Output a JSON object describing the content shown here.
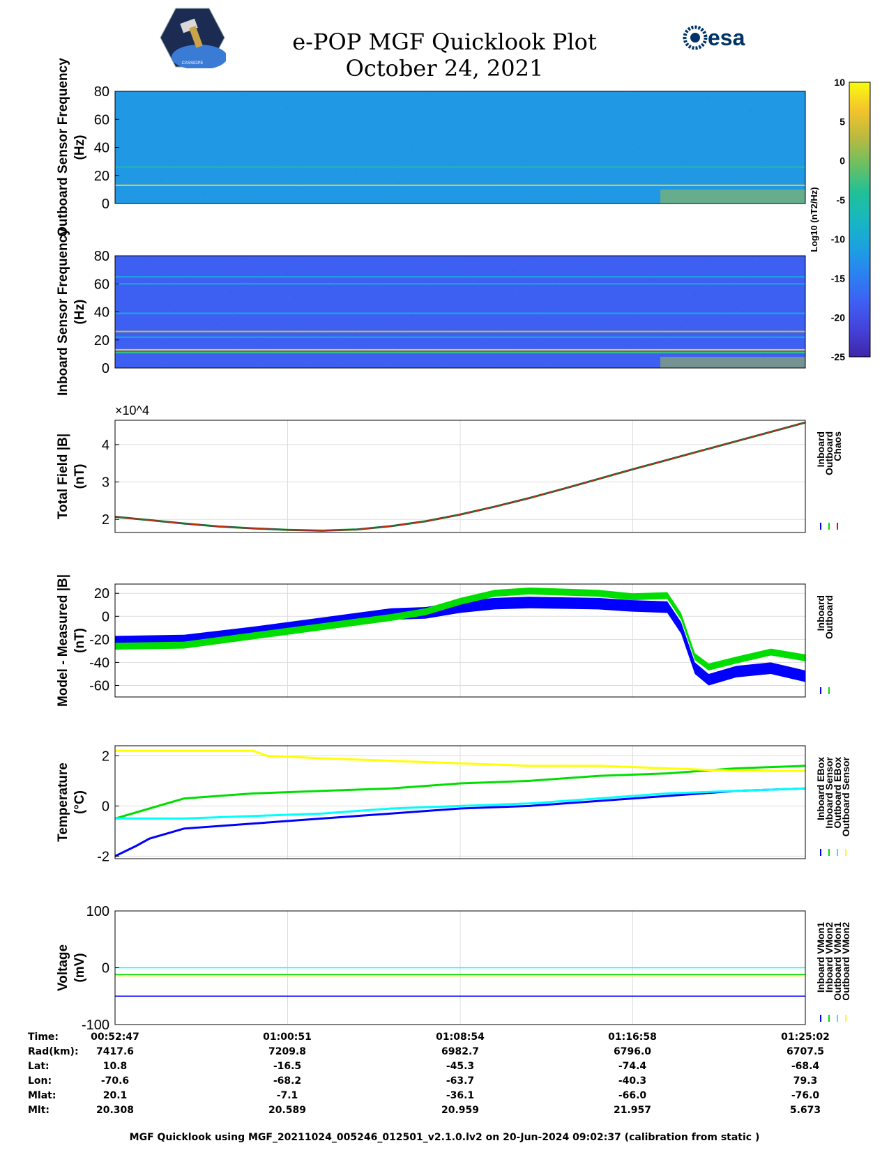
{
  "header": {
    "title_line1": "e-POP MGF Quicklook Plot",
    "title_line2": "October 24, 2021",
    "left_logo_text": "CASSIOPE",
    "right_logo_text": "esa"
  },
  "colorbar": {
    "label": "Log10 (nT2/Hz)",
    "ticks": [
      "10",
      "5",
      "0",
      "-5",
      "-10",
      "-15",
      "-20",
      "-25"
    ]
  },
  "chart_data": [
    {
      "type": "heatmap",
      "ylabel": "Outboard Sensor Frequency (Hz)",
      "ylim": [
        0,
        80
      ],
      "yticks": [
        "0",
        "20",
        "40",
        "60",
        "80"
      ],
      "color_range": [
        -25,
        10
      ],
      "background_level": -12,
      "lines": [
        {
          "freq": 13,
          "level": 7
        },
        {
          "freq": 26,
          "level": -5
        }
      ],
      "features": [
        {
          "x_start_frac": 0.79,
          "x_end_frac": 1.0,
          "freq_max": 10,
          "level": 2
        }
      ]
    },
    {
      "type": "heatmap",
      "ylabel": "Inboard Sensor Frequency (Hz)",
      "ylim": [
        0,
        80
      ],
      "yticks": [
        "0",
        "20",
        "40",
        "60",
        "80"
      ],
      "color_range": [
        -25,
        10
      ],
      "background_level": -18,
      "lines": [
        {
          "freq": 13,
          "level": 7
        },
        {
          "freq": 11,
          "level": -3
        },
        {
          "freq": 26,
          "level": 4
        },
        {
          "freq": 22,
          "level": -10
        },
        {
          "freq": 39,
          "level": -10
        },
        {
          "freq": 60,
          "level": -10
        },
        {
          "freq": 65,
          "level": -10
        }
      ],
      "features": [
        {
          "x_start_frac": 0.79,
          "x_end_frac": 1.0,
          "freq_max": 8,
          "level": 2
        }
      ]
    },
    {
      "type": "line",
      "ylabel": "Total Field |B| (nT)",
      "ylim": [
        16500,
        46500
      ],
      "exponent_label": "×10^4",
      "yticks": [
        "2",
        "3",
        "4"
      ],
      "ytick_values": [
        20000,
        30000,
        40000
      ],
      "legend": [
        "Inboard",
        "Outboard",
        "Chaos"
      ],
      "colors": [
        "#0000ff",
        "#00dd00",
        "#ff0000"
      ],
      "x_frac": [
        0.0,
        0.05,
        0.1,
        0.15,
        0.2,
        0.25,
        0.3,
        0.35,
        0.4,
        0.45,
        0.5,
        0.55,
        0.6,
        0.65,
        0.7,
        0.75,
        0.8,
        0.85,
        0.9,
        0.95,
        1.0
      ],
      "values": [
        20700,
        19800,
        18900,
        18100,
        17600,
        17200,
        17000,
        17300,
        18200,
        19500,
        21300,
        23400,
        25700,
        28200,
        30800,
        33400,
        35900,
        38400,
        40900,
        43400,
        45900
      ]
    },
    {
      "type": "line",
      "ylabel": "Model - Measured |B| (nT)",
      "ylim": [
        -70,
        28
      ],
      "yticks": [
        "-60",
        "-40",
        "-20",
        "0",
        "20"
      ],
      "ytick_values": [
        -60,
        -40,
        -20,
        0,
        20
      ],
      "legend": [
        "Inboard",
        "Outboard"
      ],
      "colors": [
        "#0000ff",
        "#00dd00"
      ],
      "series": [
        {
          "name": "Inboard",
          "x_frac": [
            0.0,
            0.1,
            0.2,
            0.3,
            0.4,
            0.45,
            0.5,
            0.55,
            0.6,
            0.7,
            0.75,
            0.8,
            0.82,
            0.84,
            0.86,
            0.9,
            0.95,
            1.0
          ],
          "values": [
            -22,
            -21,
            -14,
            -6,
            2,
            3,
            8,
            11,
            12,
            11,
            9,
            8,
            -10,
            -45,
            -55,
            -48,
            -45,
            -52
          ],
          "spread": 5
        },
        {
          "name": "Outboard",
          "x_frac": [
            0.0,
            0.1,
            0.2,
            0.3,
            0.4,
            0.45,
            0.5,
            0.55,
            0.6,
            0.7,
            0.75,
            0.8,
            0.82,
            0.84,
            0.86,
            0.9,
            0.95,
            1.0
          ],
          "values": [
            -26,
            -25,
            -17,
            -9,
            -1,
            4,
            13,
            20,
            22,
            20,
            17,
            18,
            0,
            -35,
            -44,
            -38,
            -31,
            -36
          ],
          "spread": 3
        }
      ]
    },
    {
      "type": "line",
      "ylabel": "Temperature (°C)",
      "ylim": [
        -2.1,
        2.4
      ],
      "yticks": [
        "-2",
        "0",
        "2"
      ],
      "ytick_values": [
        -2,
        0,
        2
      ],
      "legend": [
        "Inboard EBox",
        "Inboard Sensor",
        "Outboard EBox",
        "Outboard Sensor"
      ],
      "colors": [
        "#0000ff",
        "#00dd00",
        "#00ffff",
        "#ffff00"
      ],
      "series": [
        {
          "name": "Inboard EBox",
          "x_frac": [
            0.0,
            0.03,
            0.05,
            0.1,
            0.2,
            0.3,
            0.4,
            0.5,
            0.6,
            0.7,
            0.8,
            0.9,
            1.0
          ],
          "values": [
            -2.0,
            -1.6,
            -1.3,
            -0.9,
            -0.7,
            -0.5,
            -0.3,
            -0.1,
            0.0,
            0.2,
            0.4,
            0.6,
            0.7
          ]
        },
        {
          "name": "Inboard Sensor",
          "x_frac": [
            0.0,
            0.05,
            0.1,
            0.2,
            0.3,
            0.4,
            0.5,
            0.6,
            0.7,
            0.8,
            0.9,
            1.0
          ],
          "values": [
            -0.5,
            -0.1,
            0.3,
            0.5,
            0.6,
            0.7,
            0.9,
            1.0,
            1.2,
            1.3,
            1.5,
            1.6
          ]
        },
        {
          "name": "Outboard EBox",
          "x_frac": [
            0.0,
            0.1,
            0.2,
            0.3,
            0.4,
            0.5,
            0.6,
            0.7,
            0.8,
            0.9,
            1.0
          ],
          "values": [
            -0.5,
            -0.5,
            -0.4,
            -0.3,
            -0.1,
            0.0,
            0.1,
            0.3,
            0.5,
            0.6,
            0.7
          ]
        },
        {
          "name": "Outboard Sensor",
          "x_frac": [
            0.0,
            0.1,
            0.2,
            0.22,
            0.3,
            0.4,
            0.5,
            0.6,
            0.7,
            0.8,
            0.9,
            1.0
          ],
          "values": [
            2.2,
            2.2,
            2.2,
            2.0,
            1.9,
            1.8,
            1.7,
            1.6,
            1.6,
            1.5,
            1.4,
            1.4
          ]
        }
      ]
    },
    {
      "type": "line",
      "ylabel": "Voltage (mV)",
      "ylim": [
        -100,
        100
      ],
      "yticks": [
        "-100",
        "0",
        "100"
      ],
      "ytick_values": [
        -100,
        0,
        100
      ],
      "legend": [
        "Inboard VMon1",
        "Inboard VMon2",
        "Outboard VMon1",
        "Outboard VMon2"
      ],
      "colors": [
        "#0000ff",
        "#00dd00",
        "#00ffff",
        "#ffff00"
      ],
      "series": [
        {
          "name": "Inboard VMon1",
          "x_frac": [
            0.0,
            1.0
          ],
          "values": [
            -50,
            -50
          ]
        },
        {
          "name": "Inboard VMon2",
          "x_frac": [
            0.0,
            1.0
          ],
          "values": [
            -12,
            -12
          ]
        },
        {
          "name": "Outboard VMon1",
          "x_frac": [
            0.0,
            1.0
          ],
          "values": [
            0,
            0
          ]
        },
        {
          "name": "Outboard VMon2",
          "x_frac": [
            0.0,
            1.0
          ],
          "values": [
            -14,
            -14
          ]
        }
      ]
    }
  ],
  "ephemeris": {
    "labels": [
      "Time:",
      "Rad(km):",
      "Lat:",
      "Lon:",
      "Mlat:",
      "Mlt:"
    ],
    "columns": [
      [
        "00:52:47",
        "7417.6",
        "10.8",
        "-70.6",
        "20.1",
        "20.308"
      ],
      [
        "01:00:51",
        "7209.8",
        "-16.5",
        "-68.2",
        "-7.1",
        "20.589"
      ],
      [
        "01:08:54",
        "6982.7",
        "-45.3",
        "-63.7",
        "-36.1",
        "20.959"
      ],
      [
        "01:16:58",
        "6796.0",
        "-74.4",
        "-40.3",
        "-66.0",
        "21.957"
      ],
      [
        "01:25:02",
        "6707.5",
        "-68.4",
        "79.3",
        "-76.0",
        "5.673"
      ]
    ]
  },
  "footer": "MGF Quicklook using MGF_20211024_005246_012501_v2.1.0.lv2 on 20-Jun-2024 09:02:37 (calibration from static )"
}
